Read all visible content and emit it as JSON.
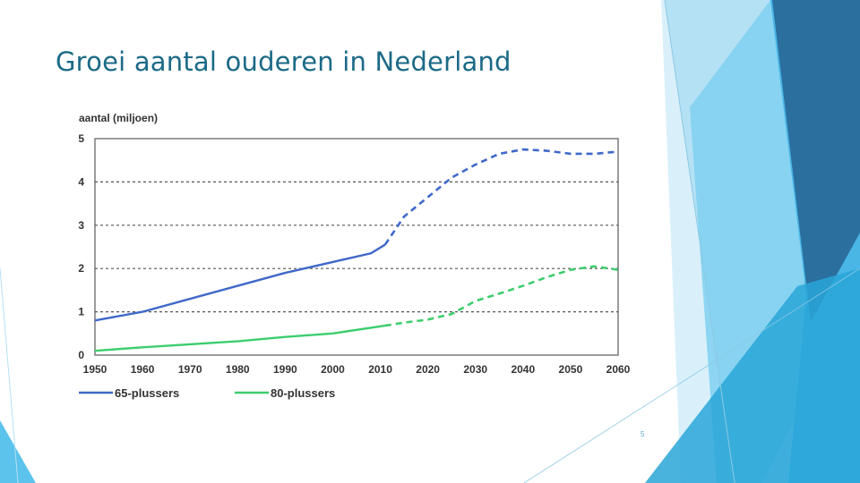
{
  "slide": {
    "title": "Groei aantal ouderen in Nederland",
    "page_number": "5"
  },
  "colors": {
    "title": "#1b6a87",
    "series_65": "#3f68c8",
    "series_80": "#3ccd6e",
    "deco_light": "#b5e1f5",
    "deco_mid": "#49b6e6",
    "deco_dark": "#2b6f9e"
  },
  "chart_data": {
    "type": "line",
    "title": "",
    "ylabel": "aantal (miljoen)",
    "xlabel": "",
    "xlim": [
      1950,
      2060
    ],
    "ylim": [
      0,
      5
    ],
    "x_ticks": [
      "1950",
      "1960",
      "1970",
      "1980",
      "1990",
      "2000",
      "2010",
      "2020",
      "2030",
      "2040",
      "2050",
      "2060"
    ],
    "y_ticks": [
      "0",
      "1",
      "2",
      "3",
      "4",
      "5"
    ],
    "grid": "horizontal dashed",
    "legend_position": "bottom",
    "series": [
      {
        "name": "65-plussers",
        "observed": {
          "x": [
            1950,
            1960,
            1970,
            1980,
            1990,
            2000,
            2008,
            2011
          ],
          "y": [
            0.8,
            1.0,
            1.3,
            1.6,
            1.9,
            2.15,
            2.35,
            2.55
          ]
        },
        "projected": {
          "x": [
            2011,
            2015,
            2020,
            2025,
            2030,
            2035,
            2040,
            2045,
            2050,
            2055,
            2060
          ],
          "y": [
            2.55,
            3.2,
            3.65,
            4.1,
            4.4,
            4.65,
            4.75,
            4.72,
            4.65,
            4.65,
            4.7
          ]
        }
      },
      {
        "name": "80-plussers",
        "observed": {
          "x": [
            1950,
            1960,
            1970,
            1980,
            1990,
            2000,
            2011
          ],
          "y": [
            0.1,
            0.18,
            0.25,
            0.32,
            0.42,
            0.5,
            0.68
          ]
        },
        "projected": {
          "x": [
            2011,
            2015,
            2020,
            2025,
            2030,
            2035,
            2040,
            2045,
            2050,
            2055,
            2060
          ],
          "y": [
            0.68,
            0.75,
            0.82,
            0.95,
            1.25,
            1.42,
            1.6,
            1.8,
            1.97,
            2.05,
            1.97
          ]
        }
      }
    ]
  }
}
